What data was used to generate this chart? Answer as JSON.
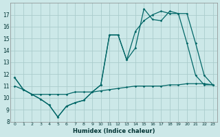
{
  "xlabel": "Humidex (Indice chaleur)",
  "background_color": "#cce8e8",
  "grid_color": "#aacccc",
  "line_color": "#006666",
  "x_values": [
    0,
    1,
    2,
    3,
    4,
    5,
    6,
    7,
    8,
    9,
    10,
    11,
    12,
    13,
    14,
    15,
    16,
    17,
    18,
    19,
    20,
    21,
    22,
    23
  ],
  "series1": [
    11.7,
    10.7,
    10.3,
    9.9,
    9.4,
    8.4,
    9.3,
    9.6,
    9.8,
    10.5,
    11.1,
    15.3,
    15.3,
    13.2,
    14.2,
    17.5,
    16.6,
    16.5,
    17.3,
    17.1,
    17.1,
    14.6,
    11.9,
    11.1
  ],
  "series2": [
    11.0,
    10.7,
    10.3,
    10.3,
    10.3,
    10.3,
    10.3,
    10.5,
    10.5,
    10.5,
    10.6,
    10.7,
    10.8,
    10.9,
    11.0,
    11.0,
    11.0,
    11.0,
    11.1,
    11.1,
    11.2,
    11.2,
    11.2,
    11.1
  ],
  "series3": [
    11.7,
    10.7,
    10.3,
    9.9,
    9.4,
    8.4,
    9.3,
    9.6,
    9.8,
    10.5,
    11.1,
    15.3,
    15.3,
    13.2,
    15.6,
    16.5,
    17.0,
    17.3,
    17.1,
    17.1,
    14.6,
    11.9,
    11.1,
    11.1
  ],
  "ylim": [
    8,
    18
  ],
  "xlim_min": -0.5,
  "xlim_max": 23.5,
  "yticks": [
    8,
    9,
    10,
    11,
    12,
    13,
    14,
    15,
    16,
    17
  ],
  "xticks": [
    0,
    1,
    2,
    3,
    4,
    5,
    6,
    7,
    8,
    9,
    10,
    11,
    12,
    13,
    14,
    15,
    16,
    17,
    18,
    19,
    20,
    21,
    22,
    23
  ]
}
